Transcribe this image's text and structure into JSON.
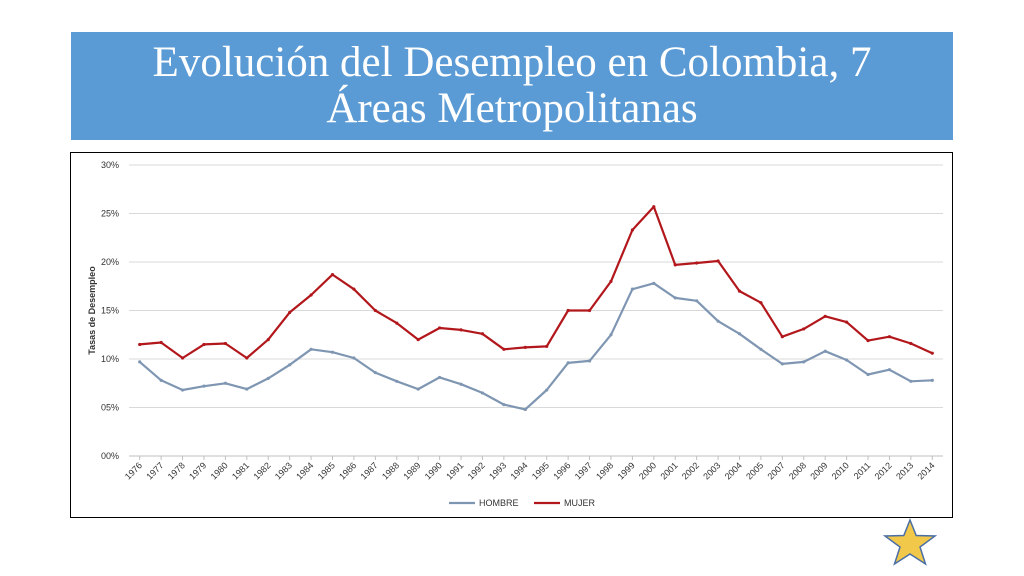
{
  "header": {
    "title_line1": "Evolución del Desempleo en Colombia, 7",
    "title_line2": "Áreas Metropolitanas"
  },
  "colors": {
    "banner": "#5b9bd5",
    "hombre": "#7f96b2",
    "mujer": "#b2171c",
    "grid": "#d9d9d9",
    "star_fill": "#f2c84b",
    "star_stroke": "#4a6fa5"
  },
  "decor": {
    "star_icon": "star-icon"
  },
  "chart_data": {
    "type": "line",
    "title": "",
    "xlabel": "",
    "ylabel": "Tasas de Desempleo",
    "ylim": [
      0,
      30
    ],
    "yticks": [
      "00%",
      "05%",
      "10%",
      "15%",
      "20%",
      "25%",
      "30%"
    ],
    "grid": true,
    "legend_position": "bottom",
    "categories": [
      "1976",
      "1977",
      "1978",
      "1979",
      "1980",
      "1981",
      "1982",
      "1983",
      "1984",
      "1985",
      "1986",
      "1987",
      "1988",
      "1989",
      "1990",
      "1991",
      "1992",
      "1993",
      "1994",
      "1995",
      "1996",
      "1997",
      "1998",
      "1999",
      "2000",
      "2001",
      "2002",
      "2003",
      "2004",
      "2005",
      "2007",
      "2008",
      "2009",
      "2010",
      "2011",
      "2012",
      "2013",
      "2014"
    ],
    "series": [
      {
        "name": "HOMBRE",
        "color": "#7f96b2",
        "values": [
          9.7,
          7.8,
          6.8,
          7.2,
          7.5,
          6.9,
          8.0,
          9.4,
          11.0,
          10.7,
          10.1,
          8.6,
          7.7,
          6.9,
          8.1,
          7.4,
          6.5,
          5.3,
          4.8,
          6.8,
          9.6,
          9.8,
          12.5,
          17.2,
          17.8,
          16.3,
          16.0,
          13.9,
          12.6,
          11.0,
          9.5,
          9.7,
          10.8,
          9.9,
          8.4,
          8.9,
          7.7,
          7.8
        ]
      },
      {
        "name": "MUJER",
        "color": "#b2171c",
        "values": [
          11.5,
          11.7,
          10.1,
          11.5,
          11.6,
          10.1,
          12.0,
          14.8,
          16.6,
          18.7,
          17.2,
          15.0,
          13.7,
          12.0,
          13.2,
          13.0,
          12.6,
          11.0,
          11.2,
          11.3,
          15.0,
          15.0,
          18.0,
          23.3,
          25.7,
          19.7,
          19.9,
          20.1,
          17.0,
          15.8,
          12.3,
          13.1,
          14.4,
          13.8,
          11.9,
          12.3,
          11.6,
          10.6
        ]
      }
    ]
  }
}
